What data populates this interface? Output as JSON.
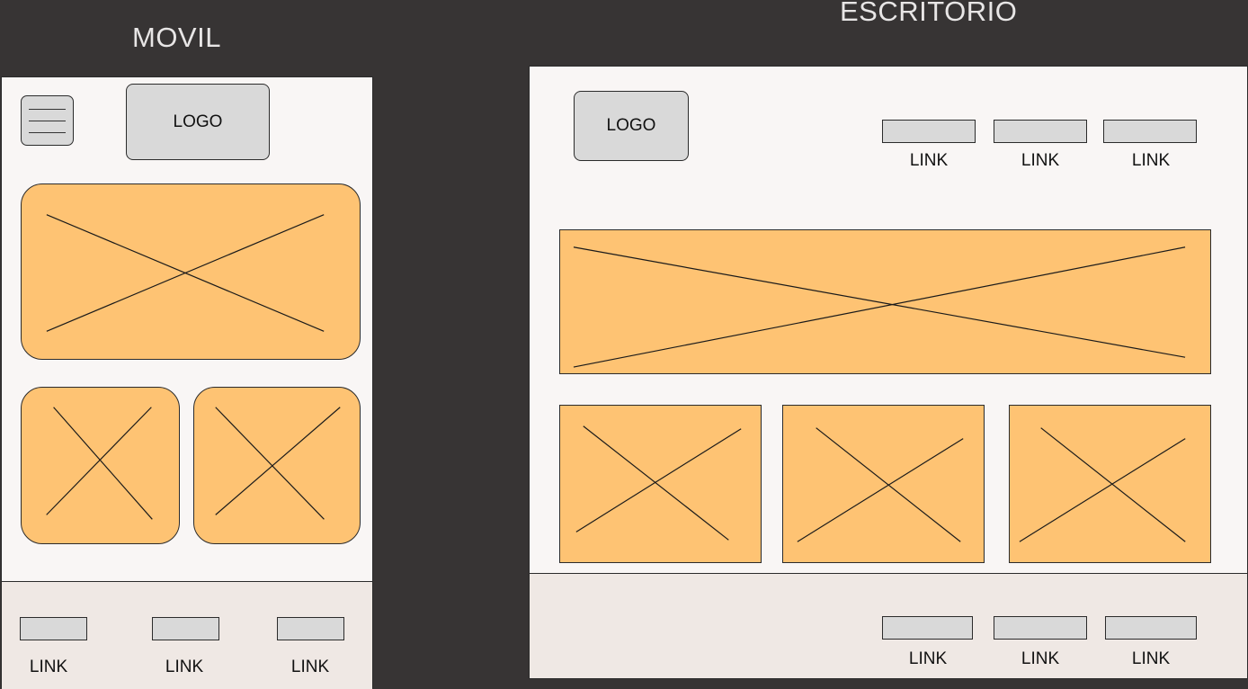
{
  "mobile": {
    "title": "MOVIL",
    "logo": "LOGO",
    "menu_icon": "hamburger-menu-icon",
    "footer_links": [
      "LINK",
      "LINK",
      "LINK"
    ]
  },
  "desktop": {
    "title": "ESCRITORIO",
    "logo": "LOGO",
    "nav_links": [
      "LINK",
      "LINK",
      "LINK"
    ],
    "footer_links": [
      "LINK",
      "LINK",
      "LINK"
    ]
  },
  "colors": {
    "background": "#373434",
    "frame": "#f9f6f5",
    "footer": "#efe8e4",
    "placeholder": "#fec373",
    "control": "#d9d9d9"
  }
}
